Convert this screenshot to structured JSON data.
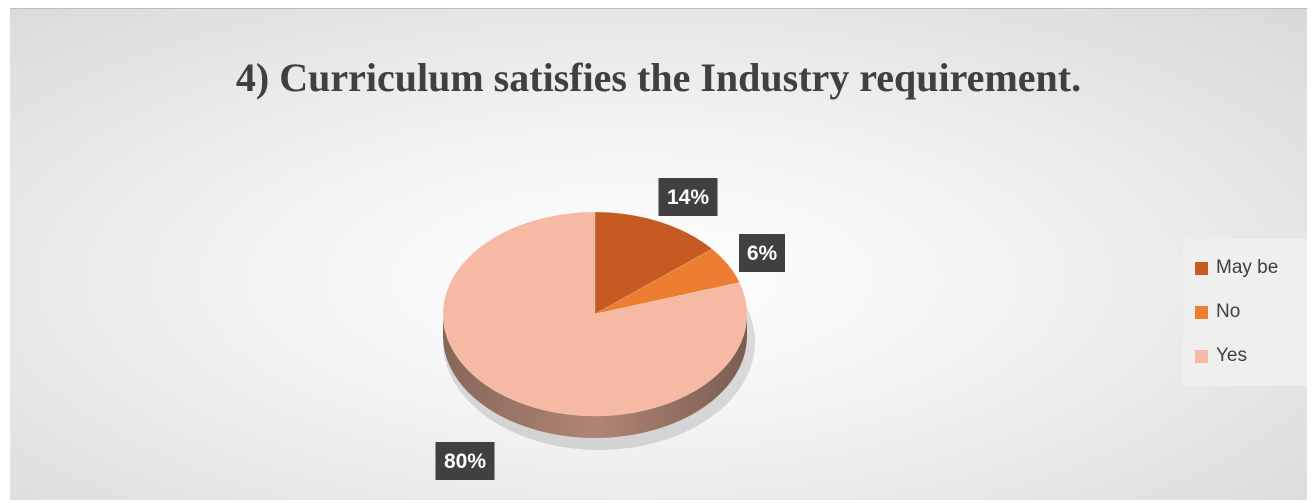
{
  "chart_data": {
    "type": "pie",
    "title": "4) Curriculum satisfies the Industry requirement.",
    "categories": [
      "May be",
      "No",
      "Yes"
    ],
    "values": [
      14,
      6,
      80
    ],
    "data_labels": [
      "14%",
      "6%",
      "80%"
    ],
    "colors": [
      "#c55a23",
      "#ed7d31",
      "#f6b9a3"
    ],
    "legend_position": "right"
  }
}
